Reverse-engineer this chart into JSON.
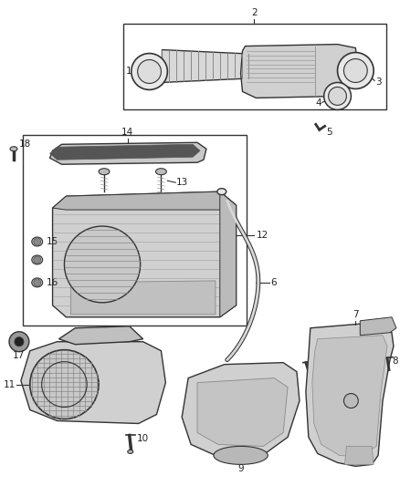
{
  "bg_color": "#ffffff",
  "fig_width": 4.38,
  "fig_height": 5.33,
  "dpi": 100,
  "lc": "#333333",
  "fc_light": "#e8e8e8",
  "fc_mid": "#cccccc",
  "fc_dark": "#aaaaaa",
  "fs": 7.5
}
